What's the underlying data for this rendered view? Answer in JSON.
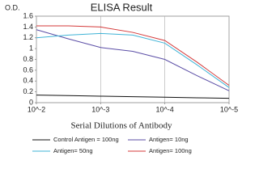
{
  "chart_data": {
    "type": "line",
    "title": "ELISA Result",
    "y_label": "O.D.",
    "x_label": "Serial Dilutions  of Antibody",
    "x": [
      0.01,
      0.00316,
      0.001,
      0.000316,
      0.0001,
      3.16e-05,
      1e-05
    ],
    "log_x": true,
    "xlim": [
      0.01,
      1e-05
    ],
    "xticks": [
      {
        "value": 0.01,
        "label": "10^-2"
      },
      {
        "value": 0.001,
        "label": "10^-3"
      },
      {
        "value": 0.0001,
        "label": "10^-4"
      },
      {
        "value": 1e-05,
        "label": "10^-5"
      }
    ],
    "ylim": [
      0,
      1.6
    ],
    "yticks": [
      0,
      0.2,
      0.4,
      0.6,
      0.8,
      1,
      1.2,
      1.4,
      1.6
    ],
    "grid": "x",
    "legend": "bottom",
    "series": [
      {
        "name": "Control Antigen = 100ng",
        "color": "#111111",
        "values": [
          0.14,
          0.13,
          0.12,
          0.11,
          0.1,
          0.09,
          0.08
        ]
      },
      {
        "name": "Antigen= 10ng",
        "color": "#5b4ea6",
        "values": [
          1.35,
          1.18,
          1.02,
          0.95,
          0.8,
          0.5,
          0.22
        ]
      },
      {
        "name": "Antigen= 50ng",
        "color": "#3fb3d6",
        "values": [
          1.2,
          1.25,
          1.28,
          1.25,
          1.1,
          0.7,
          0.28
        ]
      },
      {
        "name": "Antigen= 100ng",
        "color": "#d43a3a",
        "values": [
          1.42,
          1.42,
          1.4,
          1.3,
          1.15,
          0.75,
          0.32
        ]
      }
    ]
  }
}
